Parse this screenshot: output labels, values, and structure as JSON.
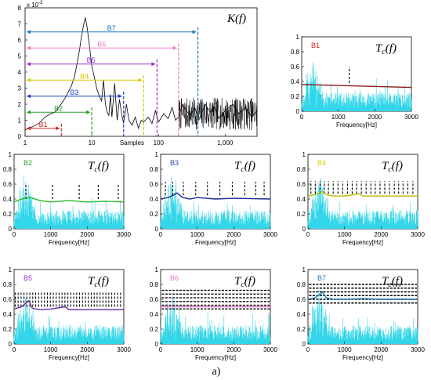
{
  "figure": {
    "caption": "a)"
  },
  "chart_data": [
    {
      "id": "kurtogram",
      "type": "line",
      "title": "K(f)",
      "xlabel": "Samples",
      "ylabel": "",
      "y_exponent_label": "x 10",
      "y_exponent_power": "-3",
      "xscale": "log",
      "xlim": [
        1,
        3000
      ],
      "ylim": [
        0,
        8
      ],
      "x_ticks": [
        1,
        10,
        100,
        1000
      ],
      "x_tick_labels": [
        "1",
        "10",
        "100",
        "1,000"
      ],
      "y_ticks": [
        0,
        1,
        2,
        3,
        4,
        5,
        6,
        7,
        8
      ],
      "y_tick_labels": [
        "0",
        "1",
        "2",
        "3",
        "4",
        "5",
        "6",
        "7",
        "8"
      ],
      "line_color": "#000000",
      "x": [
        1,
        1.3,
        1.6,
        2,
        2.4,
        2.8,
        3.2,
        3.6,
        4,
        4.5,
        5,
        5.5,
        6,
        6.5,
        7,
        7.5,
        8,
        8.5,
        9,
        9.5,
        10,
        11,
        12,
        13,
        14,
        15,
        16,
        17,
        18,
        19,
        20,
        22,
        24,
        26,
        28,
        30,
        33,
        36,
        40,
        45,
        50,
        55,
        60,
        70,
        80,
        90,
        100,
        120,
        140,
        160,
        180,
        200,
        230,
        260,
        300,
        350,
        400,
        500,
        600,
        700,
        800,
        1000,
        1300,
        1600,
        2000,
        2500,
        3000
      ],
      "y": [
        0.4,
        0.6,
        0.8,
        1.2,
        1.4,
        1.5,
        1.8,
        2.1,
        2.4,
        2.8,
        3.2,
        3.7,
        4.5,
        5.3,
        6.2,
        6.9,
        7.4,
        6.8,
        6.0,
        5.2,
        4.4,
        3.6,
        2.9,
        2.5,
        2.2,
        3.5,
        2.0,
        1.5,
        1.3,
        2.6,
        1.2,
        3.3,
        1.0,
        2.3,
        1.4,
        0.8,
        2.0,
        1.0,
        0.7,
        1.2,
        0.5,
        1.0,
        0.9,
        1.2,
        0.8,
        1.6,
        0.9,
        1.4,
        1.1,
        1.8,
        1.0,
        1.2,
        2.0,
        1.6,
        1.3,
        1.8,
        1.0,
        2.0,
        1.5,
        1.8,
        1.1,
        1.6,
        2.0,
        1.4,
        1.8,
        1.2,
        1.6
      ],
      "bands": [
        {
          "name": "B1",
          "end": 3.5,
          "color": "#d62728"
        },
        {
          "name": "B2",
          "end": 10,
          "color": "#2ca02c"
        },
        {
          "name": "B3",
          "end": 30,
          "color": "#1f3fbf"
        },
        {
          "name": "B4",
          "end": 60,
          "color": "#d8c800"
        },
        {
          "name": "B5",
          "end": 95,
          "color": "#9932cc"
        },
        {
          "name": "B6",
          "end": 200,
          "color": "#e87bc8"
        },
        {
          "name": "B7",
          "end": 390,
          "color": "#1f77b4"
        }
      ]
    },
    {
      "id": "B1",
      "type": "line",
      "band_label": "B1",
      "band_color": "#d62728",
      "title": "Tc(f)",
      "xlabel": "Frequency[Hz]",
      "xlim": [
        0,
        3000
      ],
      "ylim": [
        0,
        1
      ],
      "x_ticks": [
        0,
        1000,
        2000,
        3000
      ],
      "y_ticks": [
        0,
        0.2,
        0.4,
        0.6,
        0.8,
        1
      ],
      "threshold": {
        "color": "#8b1a1a",
        "x": [
          0,
          3000
        ],
        "y": [
          0.36,
          0.32
        ]
      },
      "markers": [
        1300
      ],
      "marker_range": [
        0.38,
        0.6
      ]
    },
    {
      "id": "B2",
      "type": "line",
      "band_label": "B2",
      "band_color": "#2ca02c",
      "title": "Tc(f)",
      "xlabel": "Frequency[Hz]",
      "xlim": [
        0,
        3000
      ],
      "ylim": [
        0,
        1
      ],
      "x_ticks": [
        0,
        1000,
        2000,
        3000
      ],
      "y_ticks": [
        0,
        0.2,
        0.4,
        0.6,
        0.8,
        1
      ],
      "threshold": {
        "color": "#22bb22",
        "x": [
          0,
          200,
          450,
          700,
          1000,
          1500,
          2000,
          2500,
          3000
        ],
        "y": [
          0.36,
          0.4,
          0.42,
          0.38,
          0.36,
          0.38,
          0.36,
          0.37,
          0.36
        ]
      },
      "markers": [
        320,
        1050,
        1780,
        2300,
        2850
      ],
      "marker_range": [
        0.4,
        0.6
      ]
    },
    {
      "id": "B3",
      "type": "line",
      "band_label": "B3",
      "band_color": "#1f3fbf",
      "title": "Tc(f)",
      "xlabel": "Frequency[Hz]",
      "xlim": [
        0,
        3000
      ],
      "ylim": [
        0,
        1
      ],
      "x_ticks": [
        0,
        1000,
        2000,
        3000
      ],
      "y_ticks": [
        0,
        0.2,
        0.4,
        0.6,
        0.8,
        1
      ],
      "threshold": {
        "color": "#1c2a9a",
        "x": [
          0,
          200,
          300,
          450,
          600,
          800,
          1000,
          1500,
          2000,
          3000
        ],
        "y": [
          0.4,
          0.42,
          0.44,
          0.48,
          0.42,
          0.4,
          0.42,
          0.4,
          0.41,
          0.4
        ]
      },
      "markers": [
        130,
        330,
        620,
        960,
        1280,
        1620,
        1960,
        2300,
        2600,
        2830
      ],
      "marker_range": [
        0.45,
        0.63
      ]
    },
    {
      "id": "B4",
      "type": "line",
      "band_label": "B4",
      "band_color": "#d8c800",
      "title": "Tc(f)",
      "xlabel": "Frequency[Hz]",
      "xlim": [
        0,
        3000
      ],
      "ylim": [
        0,
        1
      ],
      "x_ticks": [
        0,
        1000,
        2000,
        3000
      ],
      "y_ticks": [
        0,
        0.2,
        0.4,
        0.6,
        0.8,
        1
      ],
      "threshold": {
        "color": "#b8b800",
        "x": [
          0,
          200,
          400,
          500,
          700,
          1000,
          1400,
          1500,
          2000,
          3000
        ],
        "y": [
          0.44,
          0.46,
          0.5,
          0.46,
          0.44,
          0.44,
          0.47,
          0.44,
          0.44,
          0.44
        ]
      },
      "markers": [
        80,
        200,
        330,
        450,
        560,
        690,
        820,
        950,
        1080,
        1210,
        1330,
        1460,
        1590,
        1720,
        1840,
        1970,
        2100,
        2230,
        2360,
        2480,
        2600,
        2730,
        2870
      ],
      "marker_range": [
        0.47,
        0.64
      ]
    },
    {
      "id": "B5",
      "type": "line",
      "band_label": "B5",
      "band_color": "#9932cc",
      "title": "Tc(f)",
      "xlabel": "Frequency[Hz]",
      "xlim": [
        0,
        3000
      ],
      "ylim": [
        0,
        1
      ],
      "x_ticks": [
        0,
        1000,
        2000,
        3000
      ],
      "y_ticks": [
        0,
        0.2,
        0.4,
        0.6,
        0.8,
        1
      ],
      "threshold": {
        "color": "#6a2a9a",
        "x": [
          0,
          200,
          400,
          500,
          700,
          1000,
          1400,
          1500,
          2000,
          3000
        ],
        "y": [
          0.47,
          0.5,
          0.58,
          0.48,
          0.46,
          0.47,
          0.5,
          0.46,
          0.46,
          0.46
        ]
      },
      "markers": [
        30,
        110,
        190,
        270,
        350,
        430,
        510,
        590,
        670,
        750,
        830,
        910,
        990,
        1070,
        1150,
        1230,
        1310,
        1390,
        1470,
        1550,
        1630,
        1710,
        1790,
        1870,
        1950,
        2030,
        2110,
        2190,
        2270,
        2350,
        2430,
        2510,
        2590,
        2670,
        2750,
        2830,
        2910
      ],
      "marker_range": [
        0.5,
        0.7
      ]
    },
    {
      "id": "B6",
      "type": "line",
      "band_label": "B6",
      "band_color": "#e87bc8",
      "title": "Tc(f)",
      "xlabel": "Frequency[Hz]",
      "xlim": [
        0,
        3000
      ],
      "ylim": [
        0,
        1
      ],
      "x_ticks": [
        0,
        1000,
        2000,
        3000
      ],
      "y_ticks": [
        0,
        0.2,
        0.4,
        0.6,
        0.8,
        1
      ],
      "threshold": {
        "color": "#e87bc8",
        "x": [
          0,
          3000
        ],
        "y": [
          0.5,
          0.5
        ]
      },
      "markers": [],
      "marker_range": [
        0.47,
        0.72
      ],
      "dense_fill": true
    },
    {
      "id": "B7",
      "type": "line",
      "band_label": "B7",
      "band_color": "#1f77b4",
      "title": "Tc(f)",
      "xlabel": "Frequency[Hz]",
      "xlim": [
        0,
        3000
      ],
      "ylim": [
        0,
        1
      ],
      "x_ticks": [
        0,
        1000,
        2000,
        3000
      ],
      "y_ticks": [
        0,
        0.2,
        0.4,
        0.6,
        0.8,
        1
      ],
      "threshold": {
        "color": "#1f77b4",
        "x": [
          0,
          200,
          400,
          500,
          700,
          1000,
          1500,
          2000,
          3000
        ],
        "y": [
          0.6,
          0.62,
          0.7,
          0.62,
          0.6,
          0.6,
          0.61,
          0.6,
          0.6
        ]
      },
      "markers": [],
      "marker_range": [
        0.55,
        0.8
      ],
      "dense_fill": true
    }
  ]
}
